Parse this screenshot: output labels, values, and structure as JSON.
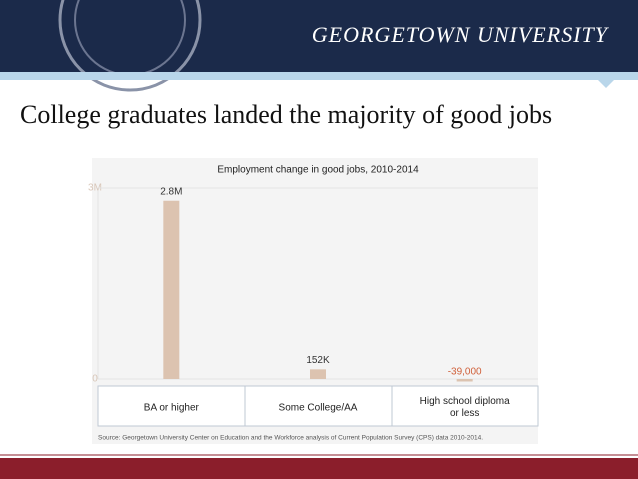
{
  "header": {
    "brand": "GEORGETOWN UNIVERSITY"
  },
  "title": "College graduates landed the majority of good jobs",
  "chart_data": {
    "type": "bar",
    "title": "Employment change in good jobs, 2010-2014",
    "categories": [
      "BA or higher",
      "Some College/AA",
      "High school diploma or less"
    ],
    "values": [
      2800000,
      152000,
      -39000
    ],
    "value_labels": [
      "2.8M",
      "152K",
      "-39,000"
    ],
    "color": "#dcc3b0",
    "ylim": [
      0,
      3000000
    ],
    "yticks": [
      {
        "value": 0,
        "label": "0"
      },
      {
        "value": 3000000,
        "label": "3M"
      }
    ],
    "grid": true
  },
  "source": "Source: Georgetown University Center on Education and the Workforce analysis of     Current Population Survey (CPS)   data 2010-2014."
}
